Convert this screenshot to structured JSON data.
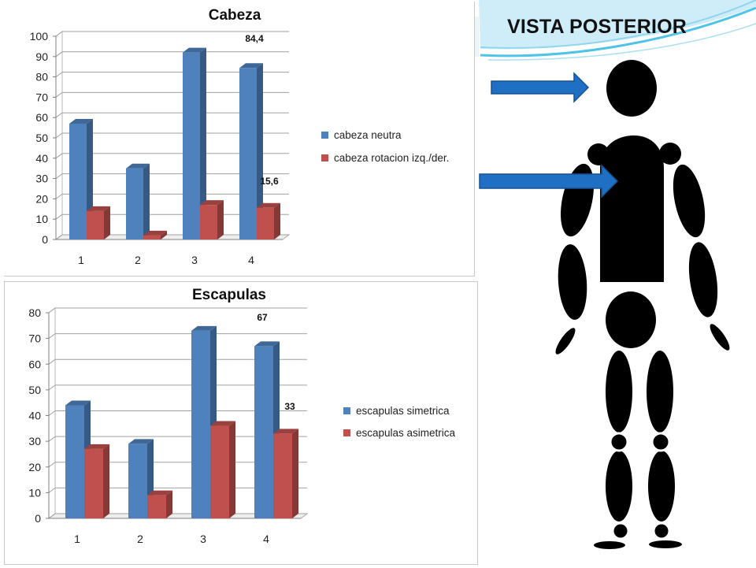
{
  "slide": {
    "title": "VISTA POSTERIOR",
    "accent_color": "#4fc3e8",
    "arrow_color": "#1f6fc5"
  },
  "charts": [
    {
      "title": "Cabeza",
      "legend": [
        "cabeza neutra",
        "cabeza rotacion izq./der."
      ],
      "annotations": [
        "84,4",
        "15,6"
      ]
    },
    {
      "title": "Escapulas",
      "legend": [
        "escapulas simetrica",
        "escapulas asimetrica"
      ],
      "annotations": [
        "67",
        "33"
      ]
    }
  ],
  "chart_data": [
    {
      "type": "bar",
      "title": "Cabeza",
      "categories": [
        "1",
        "2",
        "3",
        "4"
      ],
      "series": [
        {
          "name": "cabeza neutra",
          "values": [
            57,
            35,
            92,
            84.4
          ],
          "color": "#4f81bd"
        },
        {
          "name": "cabeza rotacion izq./der.",
          "values": [
            14,
            2,
            17,
            15.6
          ],
          "color": "#c0504d"
        }
      ],
      "ylim": [
        0,
        100
      ],
      "yticks": [
        0,
        10,
        20,
        30,
        40,
        50,
        60,
        70,
        80,
        90,
        100
      ],
      "grid": true,
      "legend_position": "right"
    },
    {
      "type": "bar",
      "title": "Escapulas",
      "categories": [
        "1",
        "2",
        "3",
        "4"
      ],
      "series": [
        {
          "name": "escapulas simetrica",
          "values": [
            44,
            29,
            73,
            67
          ],
          "color": "#4f81bd"
        },
        {
          "name": "escapulas asimetrica",
          "values": [
            27,
            9,
            36,
            33
          ],
          "color": "#c0504d"
        }
      ],
      "ylim": [
        0,
        80
      ],
      "yticks": [
        0,
        10,
        20,
        30,
        40,
        50,
        60,
        70,
        80
      ],
      "grid": true,
      "legend_position": "right"
    }
  ]
}
